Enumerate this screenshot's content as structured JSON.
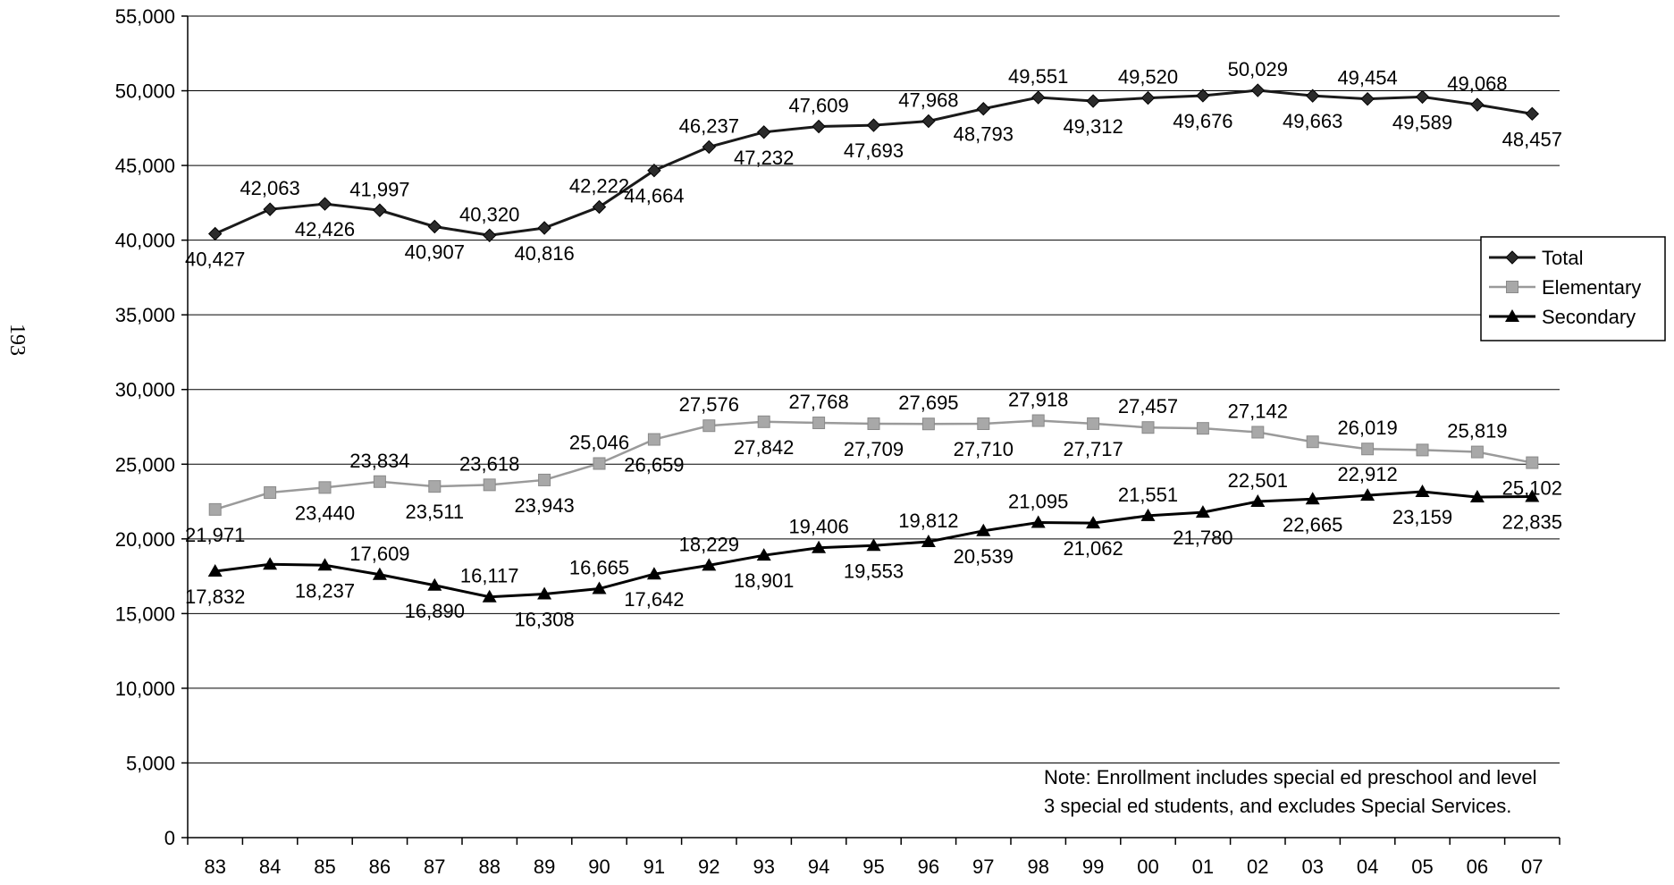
{
  "page_number": "193",
  "note_lines": [
    "Note: Enrollment includes special ed preschool and  level",
    "3 special ed students, and excludes Special Services."
  ],
  "chart_data": {
    "type": "line",
    "x": [
      "83",
      "84",
      "85",
      "86",
      "87",
      "88",
      "89",
      "90",
      "91",
      "92",
      "93",
      "94",
      "95",
      "96",
      "97",
      "98",
      "99",
      "00",
      "01",
      "02",
      "03",
      "04",
      "05",
      "06",
      "07"
    ],
    "ylim": [
      0,
      55000
    ],
    "yticks": [
      "0",
      "5,000",
      "10,000",
      "15,000",
      "20,000",
      "25,000",
      "30,000",
      "35,000",
      "40,000",
      "45,000",
      "50,000",
      "55,000"
    ],
    "grid": true,
    "legend_position": "right",
    "series": [
      {
        "name": "Total",
        "marker": "diamond",
        "color": "#1a1a1a",
        "values": [
          40427,
          42063,
          42426,
          41997,
          40907,
          40320,
          40816,
          42222,
          44664,
          46237,
          47232,
          47609,
          47693,
          47968,
          48793,
          49551,
          49312,
          49520,
          49676,
          50029,
          49663,
          49454,
          49589,
          49068,
          48457
        ],
        "labels": [
          "40,427",
          "42,063",
          "42,426",
          "41,997",
          "40,907",
          "40,320",
          "40,816",
          "42,222",
          "44,664",
          "46,237",
          "47,232",
          "47,609",
          "47,693",
          "47,968",
          "48,793",
          "49,551",
          "49,312",
          "49,520",
          "49,676",
          "50,029",
          "49,663",
          "49,454",
          "49,589",
          "49,068",
          "48,457"
        ]
      },
      {
        "name": "Elementary",
        "marker": "square",
        "color": "#9a9a9a",
        "values": [
          21971,
          23100,
          23440,
          23834,
          23511,
          23618,
          23943,
          25046,
          26659,
          27576,
          27842,
          27768,
          27709,
          27695,
          27710,
          27918,
          27717,
          27457,
          27400,
          27142,
          26500,
          26019,
          25950,
          25819,
          25102
        ],
        "labels": [
          "21,971",
          "",
          "23,440",
          "23,834",
          "23,511",
          "23,618",
          "23,943",
          "25,046",
          "26,659",
          "27,576",
          "27,842",
          "27,768",
          "27,709",
          "27,695",
          "27,710",
          "27,918",
          "27,717",
          "27,457",
          "",
          "27,142",
          "",
          "26,019",
          "",
          "25,819",
          "25,102"
        ]
      },
      {
        "name": "Secondary",
        "marker": "triangle",
        "color": "#000000",
        "values": [
          17832,
          18300,
          18237,
          17609,
          16890,
          16117,
          16308,
          16665,
          17642,
          18229,
          18901,
          19406,
          19553,
          19812,
          20539,
          21095,
          21062,
          21551,
          21780,
          22501,
          22665,
          22912,
          23159,
          22800,
          22835
        ],
        "labels": [
          "17,832",
          "",
          "18,237",
          "17,609",
          "16,890",
          "16,117",
          "16,308",
          "16,665",
          "17,642",
          "18,229",
          "18,901",
          "19,406",
          "19,553",
          "19,812",
          "20,539",
          "21,095",
          "21,062",
          "21,551",
          "21,780",
          "22,501",
          "22,665",
          "22,912",
          "23,159",
          "",
          "22,835"
        ]
      }
    ]
  }
}
